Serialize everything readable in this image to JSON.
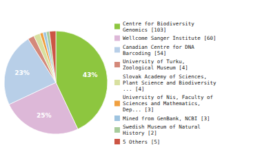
{
  "chart_data": {
    "type": "pie",
    "categories": [
      "Centre for Biodiversity\nGenomics [103]",
      "Wellcome Sanger Institute [60]",
      "Canadian Centre for DNA\nBarcoding [54]",
      "University of Turku,\nZoological Museum [4]",
      "Slovak Academy of Sciences,\nPlant Science and Biodiversity\n... [4]",
      "University of Nis, Faculty of\nSciences and Mathematics,\nDep... [3]",
      "Mined from GenBank, NCBI [3]",
      "Swedish Museum of Natural\nHistory [2]",
      "5 Others [5]"
    ],
    "values": [
      43,
      25,
      23,
      2,
      2,
      1,
      1,
      1,
      2
    ],
    "value_labels": [
      "43%",
      "25%",
      "23%",
      null,
      null,
      null,
      null,
      null,
      null
    ],
    "data_labels": true,
    "colors": [
      "#8dc63f",
      "#ddb8d8",
      "#b8cfe8",
      "#d4897a",
      "#d8e0a0",
      "#f0a040",
      "#9ec4e0",
      "#a8cc9c",
      "#cc5544"
    ],
    "legend": "right"
  }
}
